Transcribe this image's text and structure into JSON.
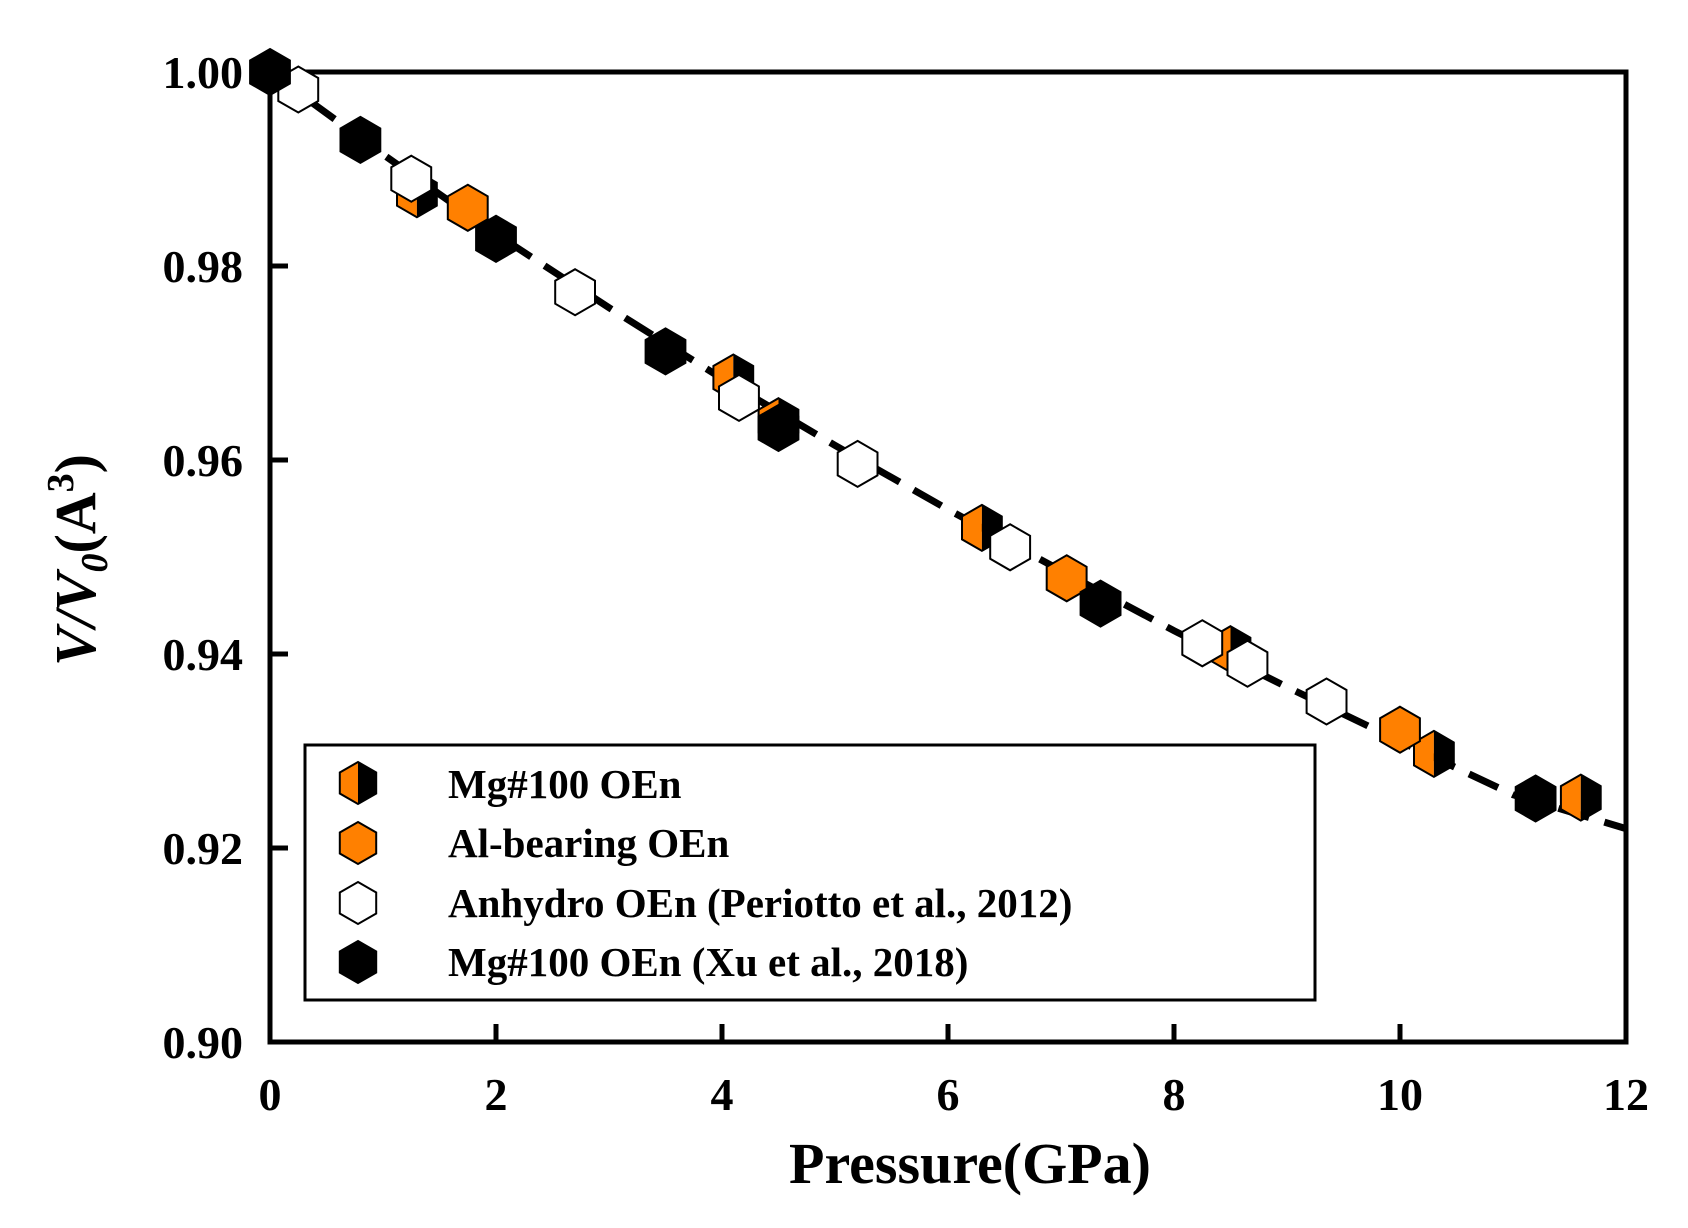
{
  "chart_data": {
    "type": "scatter",
    "xlabel": "Pressure(GPa)",
    "ylabel": {
      "main": "V/V",
      "sub": "0",
      "unit_open": "(A",
      "sup": "3",
      "unit_close": ")"
    },
    "xlim": [
      0,
      12
    ],
    "ylim": [
      0.9,
      1.0
    ],
    "xticks": [
      0,
      2,
      4,
      6,
      8,
      10,
      12
    ],
    "yticks": [
      0.9,
      0.92,
      0.94,
      0.96,
      0.98,
      1.0
    ],
    "ytick_labels": [
      "0.90",
      "0.92",
      "0.94",
      "0.96",
      "0.98",
      "1.00"
    ],
    "legend_position": "bottom-left",
    "grid": false,
    "fit_line": {
      "style": "dashed",
      "color": "#000000",
      "x": [
        0,
        1,
        2,
        3,
        4,
        5,
        6,
        7,
        8,
        9,
        10,
        11,
        12
      ],
      "y": [
        1.0,
        0.9915,
        0.9833,
        0.9757,
        0.9684,
        0.9615,
        0.9549,
        0.9486,
        0.9424,
        0.9366,
        0.931,
        0.9255,
        0.922
      ]
    },
    "series": [
      {
        "name": "Mg#100 OEn",
        "marker": "half-filled",
        "colors": {
          "left": "#ff8000",
          "right": "#000000"
        },
        "x": [
          1.3,
          4.1,
          4.5,
          6.3,
          8.5,
          10.3,
          11.6
        ],
        "y": [
          0.9874,
          0.9685,
          0.964,
          0.953,
          0.9405,
          0.9297,
          0.9252
        ]
      },
      {
        "name": "Al-bearing OEn",
        "marker": "filled",
        "colors": {
          "fill": "#ff8000"
        },
        "x": [
          1.75,
          7.05,
          10.0
        ],
        "y": [
          0.986,
          0.9478,
          0.9322
        ]
      },
      {
        "name": "Anhydro OEn (Periotto et al., 2012)",
        "marker": "open",
        "colors": {
          "fill": "#ffffff"
        },
        "x": [
          0.25,
          1.25,
          2.7,
          4.15,
          5.2,
          6.55,
          8.25,
          8.65,
          9.35
        ],
        "y": [
          0.9982,
          0.989,
          0.9773,
          0.9664,
          0.9596,
          0.951,
          0.9411,
          0.939,
          0.9351
        ]
      },
      {
        "name": "Mg#100 OEn (Xu et al., 2018)",
        "marker": "filled",
        "colors": {
          "fill": "#000000"
        },
        "x": [
          0.0,
          0.8,
          2.0,
          3.5,
          4.5,
          7.35,
          11.2
        ],
        "y": [
          1.0,
          0.993,
          0.9828,
          0.9712,
          0.9633,
          0.9452,
          0.9251
        ]
      }
    ]
  }
}
